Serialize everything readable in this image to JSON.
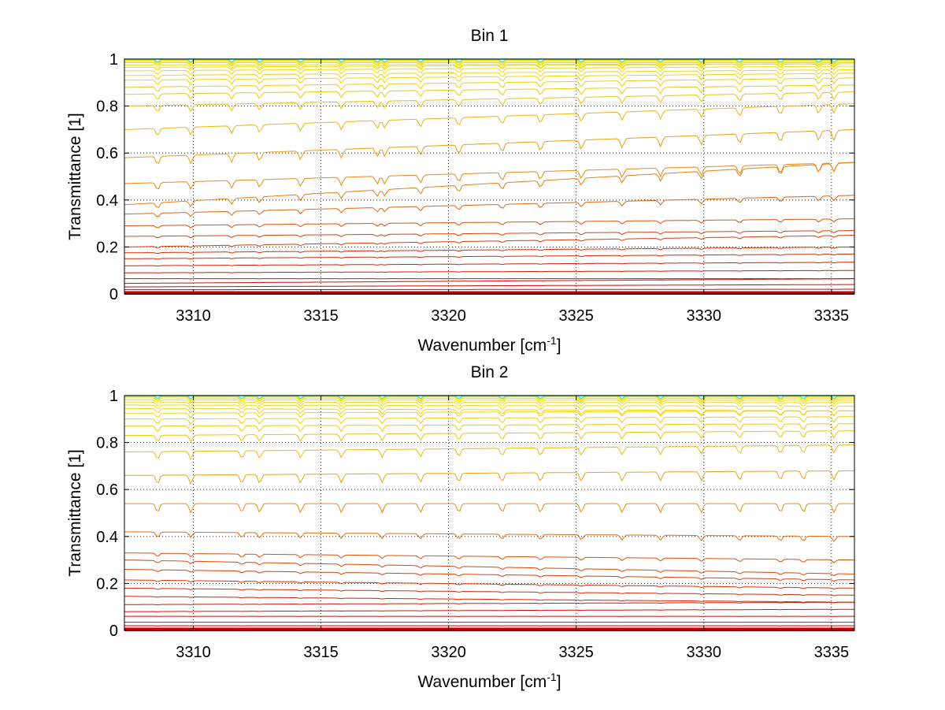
{
  "chart_data": [
    {
      "type": "line",
      "title": "Bin 1",
      "xlabel": "Wavenumber [cm",
      "xlabel_sup": "-1",
      "xlabel_end": "]",
      "ylabel": "Transmittance [1]",
      "xlim": [
        3307.3,
        3335.9
      ],
      "ylim": [
        0,
        1
      ],
      "xticks": [
        3310,
        3315,
        3320,
        3325,
        3330,
        3335
      ],
      "yticks": [
        0,
        0.2,
        0.4,
        0.6,
        0.8,
        1
      ],
      "grid": true,
      "colormap": "autumn-to-cyan",
      "series_baselines_at_left": [
        0.0,
        0.005,
        0.01,
        0.018,
        0.03,
        0.045,
        0.065,
        0.09,
        0.12,
        0.15,
        0.175,
        0.2,
        0.245,
        0.29,
        0.34,
        0.38,
        0.47,
        0.58,
        0.7,
        0.8,
        0.85,
        0.88,
        0.91,
        0.93,
        0.95,
        0.965,
        0.975,
        0.985,
        0.99,
        0.995,
        0.998,
        1.0
      ],
      "series_baselines_at_right": [
        0.0,
        0.005,
        0.01,
        0.02,
        0.04,
        0.065,
        0.1,
        0.135,
        0.17,
        0.2,
        0.25,
        0.27,
        0.32,
        0.42,
        0.56,
        0.7,
        0.81,
        0.86,
        0.89,
        0.92,
        0.94,
        0.955,
        0.97,
        0.98,
        0.985,
        0.99,
        0.995,
        0.998,
        1.0
      ],
      "absorption_lines": [
        3308.6,
        3309.9,
        3311.5,
        3312.6,
        3314.2,
        3315.8,
        3317.2,
        3317.5,
        3318.9,
        3320.4,
        3322.1,
        3323.6,
        3325.2,
        3326.8,
        3328.3,
        3329.9,
        3331.4,
        3333.0,
        3334.5,
        3335.1
      ],
      "colors": {
        "low": "#cc0000",
        "mid": "#e8861a",
        "high": "#f0e010",
        "top": "#2ee6e6"
      }
    },
    {
      "type": "line",
      "title": "Bin 2",
      "xlabel": "Wavenumber [cm",
      "xlabel_sup": "-1",
      "xlabel_end": "]",
      "ylabel": "Transmittance [1]",
      "xlim": [
        3307.3,
        3335.9
      ],
      "ylim": [
        0,
        1
      ],
      "xticks": [
        3310,
        3315,
        3320,
        3325,
        3330,
        3335
      ],
      "yticks": [
        0,
        0.2,
        0.4,
        0.6,
        0.8,
        1
      ],
      "grid": true,
      "colormap": "autumn-to-cyan",
      "series_baselines_at_left": [
        0.0,
        0.005,
        0.01,
        0.02,
        0.035,
        0.06,
        0.08,
        0.11,
        0.145,
        0.18,
        0.215,
        0.26,
        0.3,
        0.33,
        0.42,
        0.54,
        0.66,
        0.76,
        0.83,
        0.87,
        0.9,
        0.925,
        0.945,
        0.96,
        0.972,
        0.982,
        0.99,
        0.995,
        0.998,
        1.0
      ],
      "series_baselines_at_right": [
        0.0,
        0.005,
        0.01,
        0.02,
        0.035,
        0.06,
        0.09,
        0.12,
        0.15,
        0.18,
        0.215,
        0.24,
        0.3,
        0.4,
        0.54,
        0.68,
        0.79,
        0.85,
        0.88,
        0.91,
        0.935,
        0.955,
        0.97,
        0.98,
        0.987,
        0.993,
        0.997,
        1.0
      ],
      "absorption_lines": [
        3308.6,
        3309.9,
        3311.9,
        3312.6,
        3314.2,
        3315.8,
        3317.4,
        3318.9,
        3320.4,
        3322.1,
        3323.6,
        3325.2,
        3326.8,
        3328.3,
        3329.9,
        3331.4,
        3333.0,
        3333.9,
        3335.1
      ],
      "colors": {
        "low": "#cc0000",
        "mid": "#e8861a",
        "high": "#f0e010",
        "top": "#2ee6e6"
      }
    }
  ]
}
